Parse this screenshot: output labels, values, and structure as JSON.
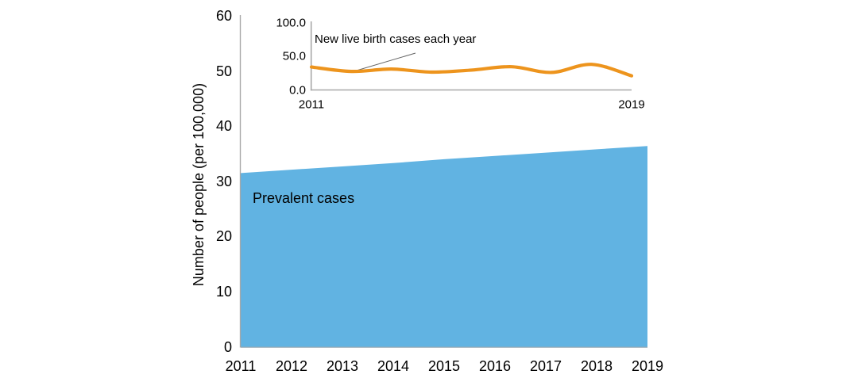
{
  "figure": {
    "background_color": "#FFFFFF",
    "text_color": "#000000",
    "axis_color": "#A8A8A8",
    "baseline_color": "#93A7B3",
    "leader_line_color": "#666666"
  },
  "main_chart": {
    "y_axis_title": "Number of people (per 100,000)",
    "area_label": "Prevalent cases",
    "area_color": "#61B3E2",
    "y_tick_labels": [
      "0",
      "10",
      "20",
      "30",
      "40",
      "50",
      "60"
    ],
    "x_tick_labels": [
      "2011",
      "2012",
      "2013",
      "2014",
      "2015",
      "2016",
      "2017",
      "2018",
      "2019"
    ]
  },
  "inset_chart": {
    "annotation_label": "New live birth cases each year",
    "line_color": "#ED941D",
    "y_tick_labels": [
      "0.0",
      "50.0",
      "100.0"
    ],
    "x_tick_labels": [
      "2011",
      "2019"
    ]
  },
  "chart_data": [
    {
      "type": "area",
      "name": "Prevalent cases",
      "x": [
        2011,
        2012,
        2013,
        2014,
        2015,
        2016,
        2017,
        2018,
        2019
      ],
      "values": [
        31.5,
        32.1,
        32.7,
        33.3,
        34.0,
        34.6,
        35.2,
        35.8,
        36.4
      ],
      "title": "",
      "xlabel": "",
      "ylabel": "Number of people (per 100,000)",
      "ylim": [
        0,
        60
      ],
      "yticks": [
        0,
        10,
        20,
        30,
        40,
        50,
        60
      ],
      "grid": false,
      "legend": "none",
      "color": "#61B3E2",
      "annotation": "Prevalent cases"
    },
    {
      "type": "line",
      "name": "New live birth cases each year",
      "x": [
        2011,
        2012,
        2013,
        2014,
        2015,
        2016,
        2017,
        2018,
        2019
      ],
      "values": [
        34.0,
        27.5,
        31.0,
        26.5,
        29.5,
        34.5,
        26.0,
        38.0,
        21.0
      ],
      "title": "",
      "xlabel": "",
      "ylabel": "",
      "ylim": [
        0,
        100
      ],
      "yticks": [
        0.0,
        50.0,
        100.0
      ],
      "xticks_shown": [
        2011,
        2019
      ],
      "grid": false,
      "legend": "none",
      "color": "#ED941D",
      "annotation": "New live birth cases each year",
      "layout_hint": "inset-top"
    }
  ]
}
